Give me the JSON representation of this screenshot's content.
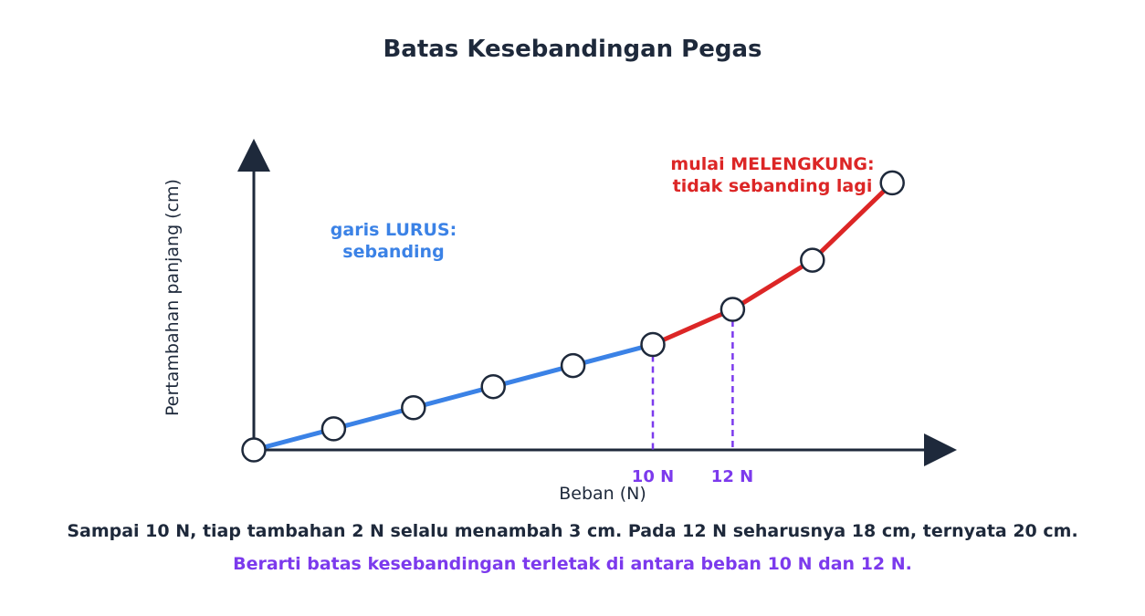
{
  "title": "Batas Kesebandingan Pegas",
  "axes": {
    "x_label": "Beban (N)",
    "y_label": "Pertambahan panjang (cm)"
  },
  "annotations": {
    "linear_line1": "garis LURUS:",
    "linear_line2": "sebanding",
    "curve_line1": "mulai MELENGKUNG:",
    "curve_line2": "tidak sebanding lagi"
  },
  "ticks": {
    "t10": "10 N",
    "t12": "12 N"
  },
  "captions": {
    "line1": "Sampai 10 N, tiap tambahan 2 N selalu menambah 3 cm. Pada 12 N seharusnya 18 cm, ternyata 20 cm.",
    "line2": "Berarti batas kesebandingan terletak di antara beban 10 N dan 12 N."
  },
  "colors": {
    "text_dark": "#1e293b",
    "linear_blue": "#3b82e6",
    "nonlinear_red": "#dc2626",
    "marker_purple": "#7c3aed"
  },
  "chart_data": {
    "type": "line",
    "x": [
      0,
      2,
      4,
      6,
      8,
      10,
      12,
      14,
      16
    ],
    "y": [
      0,
      3,
      6,
      9,
      12,
      15,
      20,
      27,
      38
    ],
    "linear_until_x": 10,
    "highlighted_x": [
      10,
      12
    ]
  }
}
